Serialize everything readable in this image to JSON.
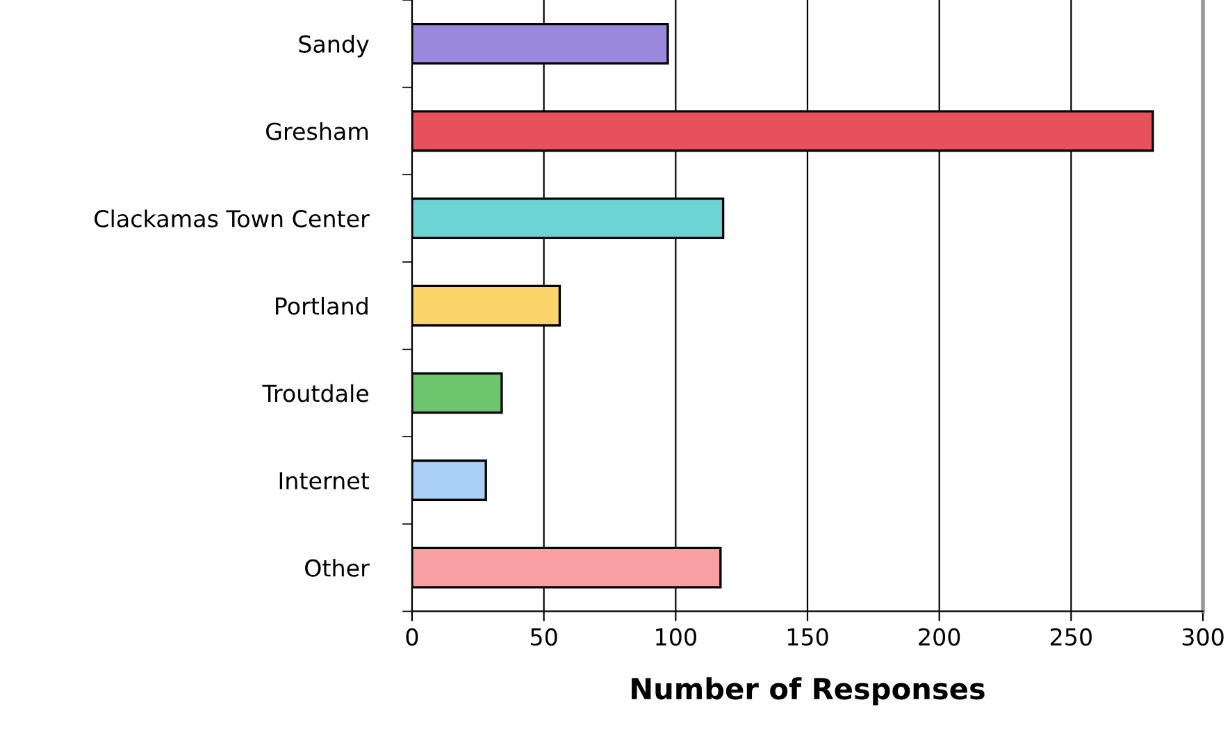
{
  "chart_data": {
    "type": "bar",
    "orientation": "horizontal",
    "xlabel": "Number of Responses",
    "categories": [
      "Sandy",
      "Gresham",
      "Clackamas Town Center",
      "Portland",
      "Troutdale",
      "Internet",
      "Other"
    ],
    "values": [
      97,
      281,
      118,
      56,
      34,
      28,
      117
    ],
    "colors": [
      "#9a88dc",
      "#e8505c",
      "#6cd4d4",
      "#fad468",
      "#6cc46c",
      "#a8d0f8",
      "#f8a0a4"
    ],
    "xlim": [
      0,
      300
    ],
    "xticks": [
      0,
      50,
      100,
      150,
      200,
      250,
      300
    ],
    "grid": "x"
  }
}
